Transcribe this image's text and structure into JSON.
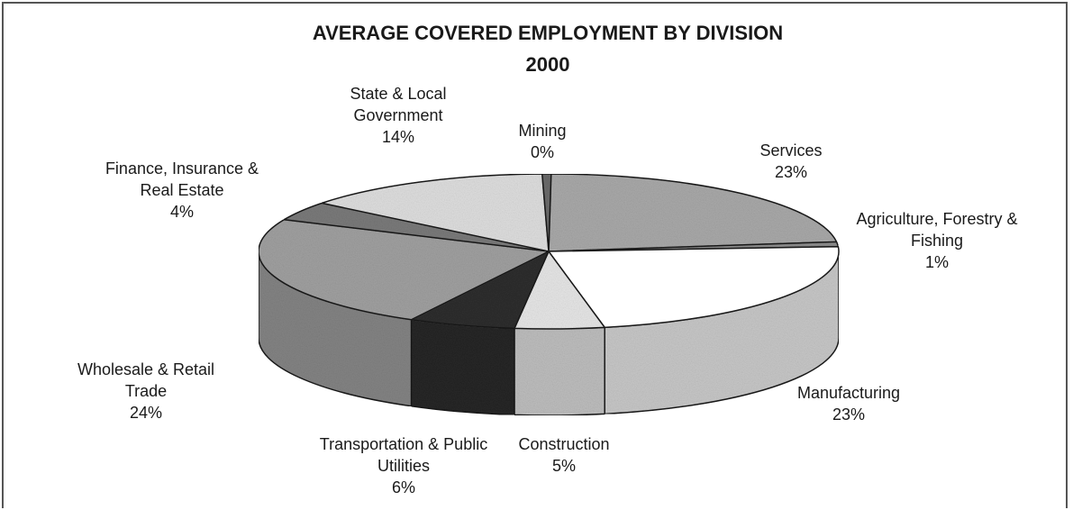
{
  "chart_data": {
    "type": "pie",
    "title": "AVERAGE COVERED EMPLOYMENT BY DIVISION",
    "subtitle": "2000",
    "slices": [
      {
        "name": "Services",
        "value": 23,
        "label": [
          "Services",
          "23%"
        ],
        "color": "#a9a9a9"
      },
      {
        "name": "Agriculture, Forestry & Fishing",
        "value": 1,
        "label": [
          "Agriculture, Forestry &",
          "Fishing",
          "1%"
        ],
        "color": "#8c8c8c"
      },
      {
        "name": "Manufacturing",
        "value": 23,
        "label": [
          "Manufacturing",
          "23%"
        ],
        "color": "#ffffff"
      },
      {
        "name": "Construction",
        "value": 5,
        "label": [
          "Construction",
          "5%"
        ],
        "color": "#e6e6e6"
      },
      {
        "name": "Transportation & Public Utilities",
        "value": 6,
        "label": [
          "Transportation & Public",
          "Utilities",
          "6%"
        ],
        "color": "#2e2e2e"
      },
      {
        "name": "Wholesale & Retail Trade",
        "value": 24,
        "label": [
          "Wholesale & Retail",
          "Trade",
          "24%"
        ],
        "color": "#a0a0a0"
      },
      {
        "name": "Finance, Insurance & Real Estate",
        "value": 4,
        "label": [
          "Finance, Insurance &",
          "Real Estate",
          "4%"
        ],
        "color": "#7a7a7a"
      },
      {
        "name": "State & Local Government",
        "value": 14,
        "label": [
          "State & Local",
          "Government",
          "14%"
        ],
        "color": "#dedede"
      },
      {
        "name": "Mining",
        "value": 0,
        "label": [
          "Mining",
          "0%"
        ],
        "color": "#6a6a6a"
      }
    ]
  }
}
